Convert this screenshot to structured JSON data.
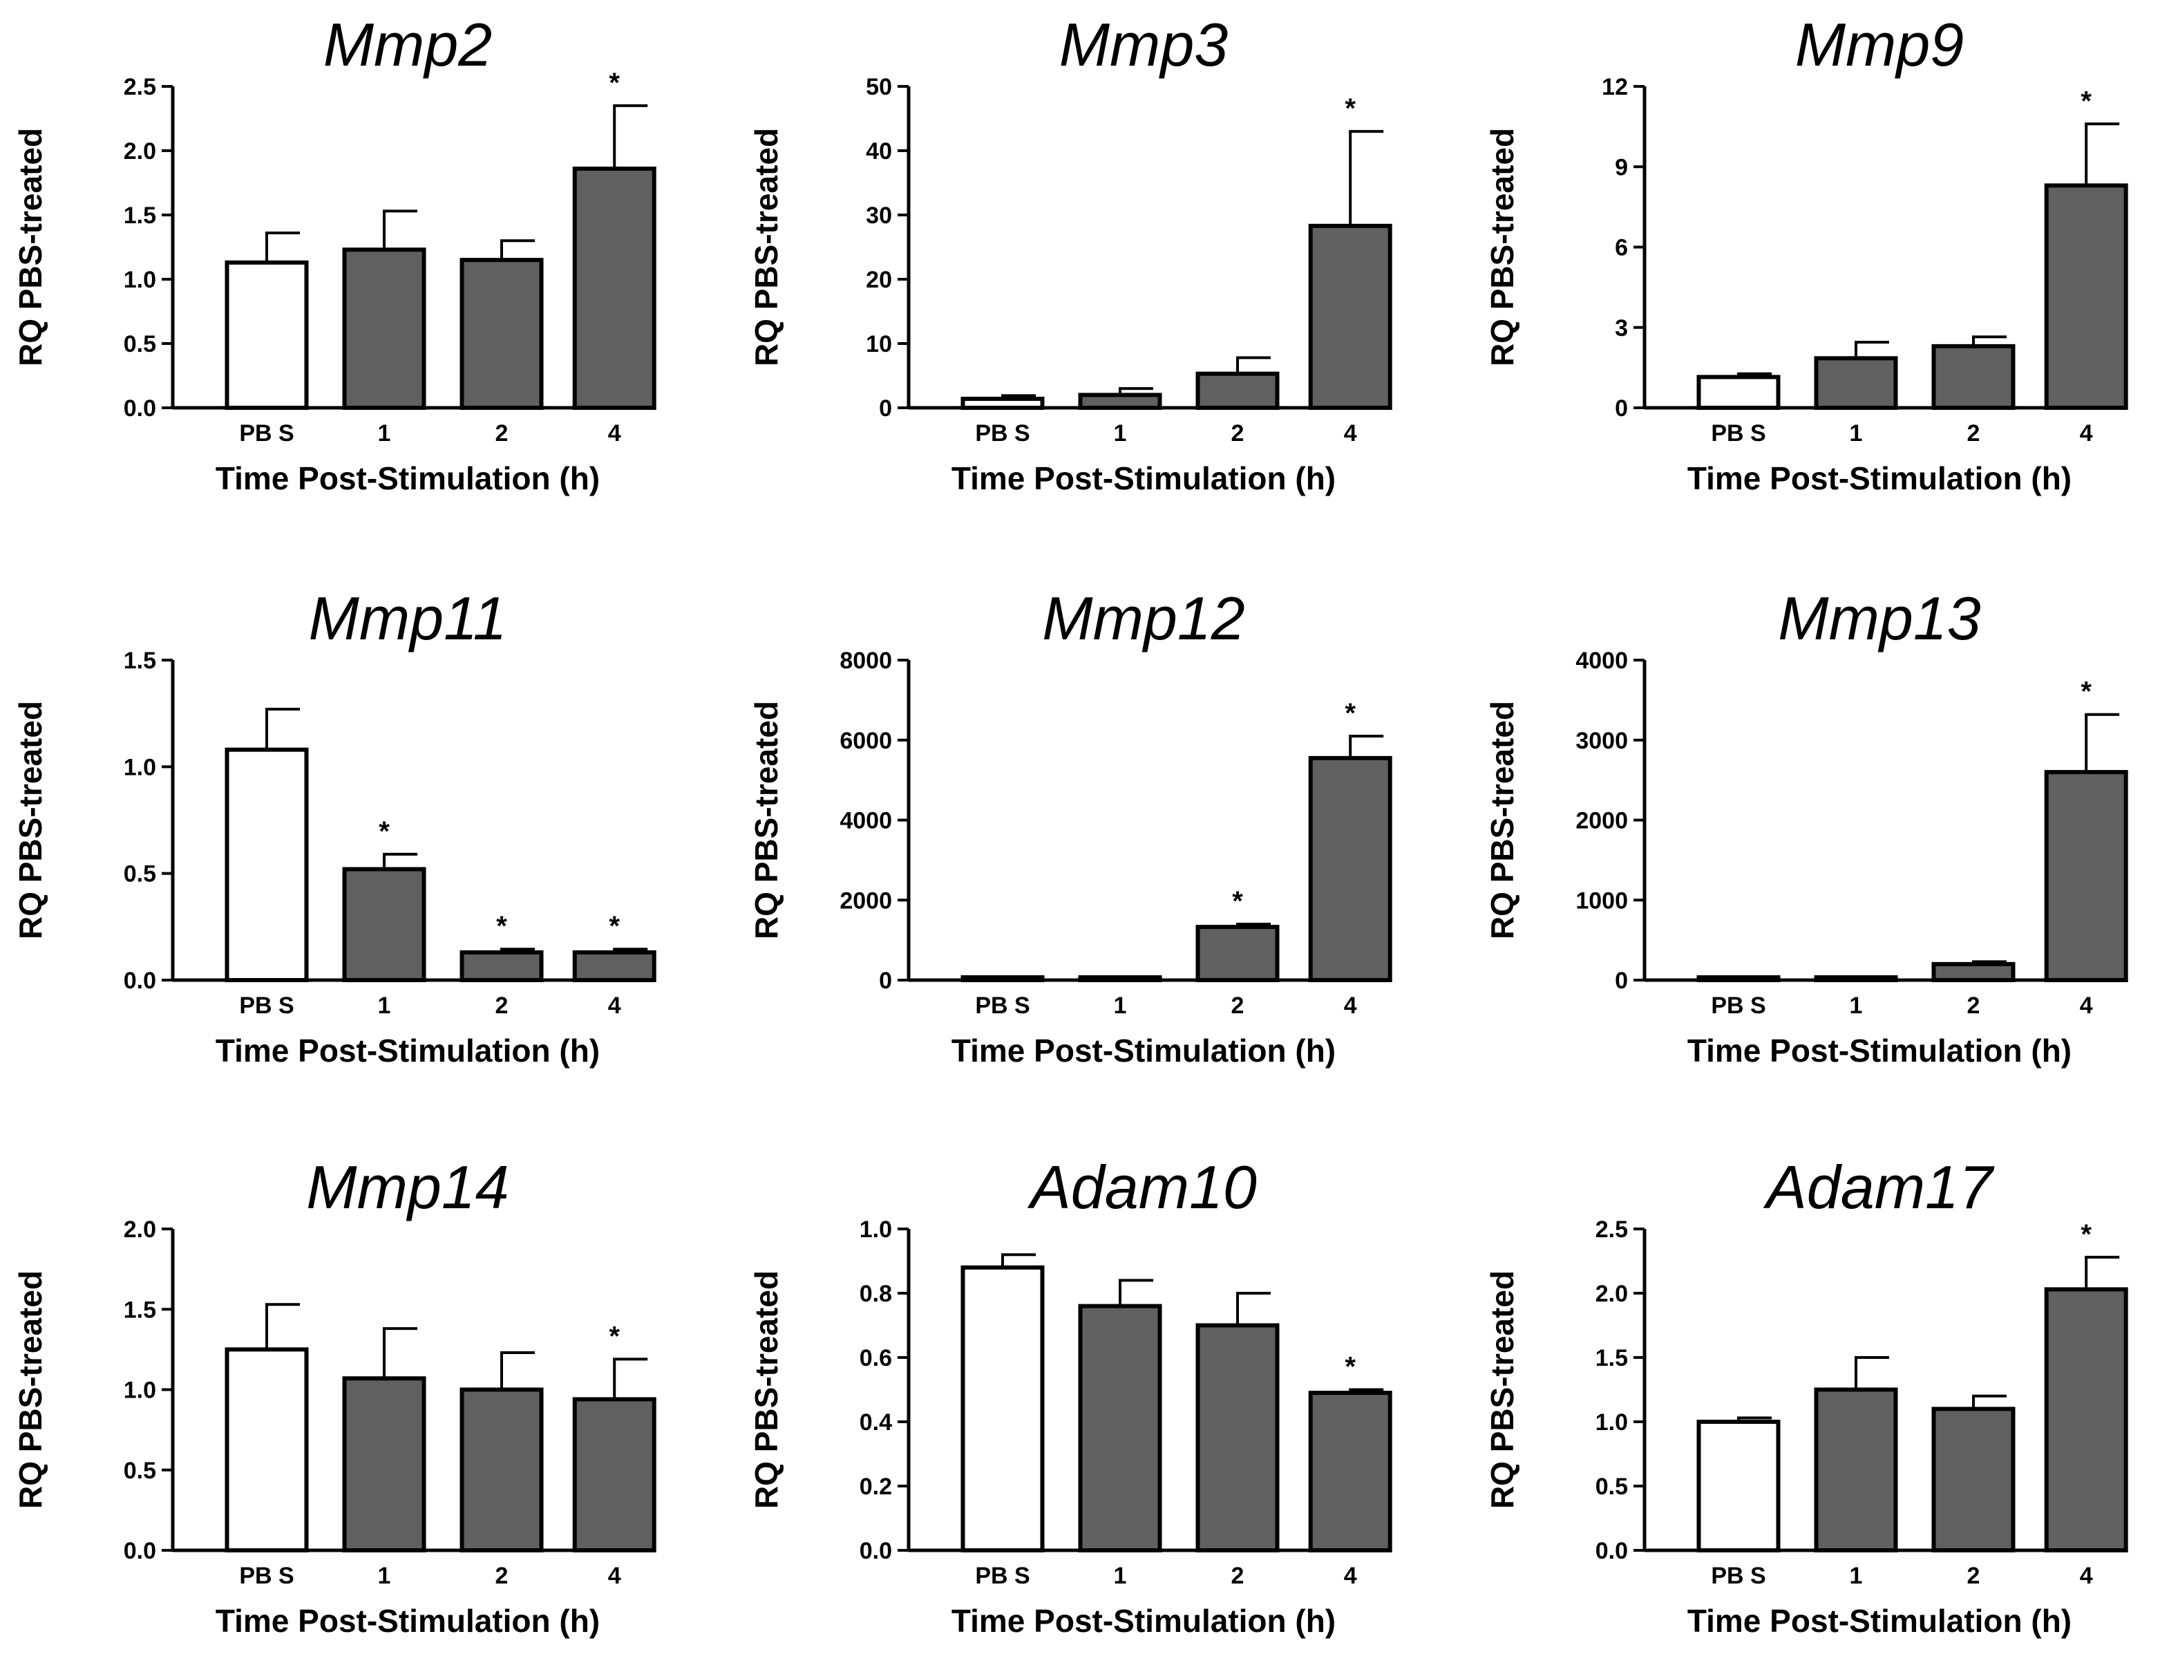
{
  "chart_data": [
    {
      "type": "bar",
      "title": "Mmp2",
      "xlabel": "Time Post-Stimulation (h)",
      "ylabel": "RQ PBS-treated",
      "categories": [
        "PB S",
        "1",
        "2",
        "4"
      ],
      "values": [
        1.13,
        1.23,
        1.15,
        1.86
      ],
      "errors": [
        0.23,
        0.3,
        0.15,
        0.49
      ],
      "significant": [
        false,
        false,
        false,
        true
      ],
      "ylim": [
        0,
        2.5
      ],
      "yticks": [
        "0.0",
        "0.5",
        "1.0",
        "1.5",
        "2.0",
        "2.5"
      ],
      "colors": [
        "#ffffff",
        "#606060",
        "#606060",
        "#606060"
      ]
    },
    {
      "type": "bar",
      "title": "Mmp3",
      "xlabel": "Time Post-Stimulation (h)",
      "ylabel": "RQ PBS-treated",
      "categories": [
        "PB S",
        "1",
        "2",
        "4"
      ],
      "values": [
        1.4,
        2.0,
        5.3,
        28.3
      ],
      "errors": [
        0.5,
        1.0,
        2.5,
        14.7
      ],
      "significant": [
        false,
        false,
        false,
        true
      ],
      "ylim": [
        0,
        50
      ],
      "yticks": [
        "0",
        "10",
        "20",
        "30",
        "40",
        "50"
      ],
      "colors": [
        "#ffffff",
        "#606060",
        "#606060",
        "#606060"
      ]
    },
    {
      "type": "bar",
      "title": "Mmp9",
      "xlabel": "Time Post-Stimulation (h)",
      "ylabel": "RQ PBS-treated",
      "categories": [
        "PB S",
        "1",
        "2",
        "4"
      ],
      "values": [
        1.15,
        1.85,
        2.3,
        8.3
      ],
      "errors": [
        0.12,
        0.6,
        0.35,
        2.3
      ],
      "significant": [
        false,
        false,
        false,
        true
      ],
      "ylim": [
        0,
        12
      ],
      "yticks": [
        "0",
        "3",
        "6",
        "9",
        "12"
      ],
      "colors": [
        "#ffffff",
        "#606060",
        "#606060",
        "#606060"
      ]
    },
    {
      "type": "bar",
      "title": "Mmp11",
      "xlabel": "Time Post-Stimulation (h)",
      "ylabel": "RQ PBS-treated",
      "categories": [
        "PB S",
        "1",
        "2",
        "4"
      ],
      "values": [
        1.08,
        0.52,
        0.13,
        0.13
      ],
      "errors": [
        0.19,
        0.07,
        0.015,
        0.015
      ],
      "significant": [
        false,
        true,
        true,
        true
      ],
      "ylim": [
        0,
        1.5
      ],
      "yticks": [
        "0.0",
        "0.5",
        "1.0",
        "1.5"
      ],
      "colors": [
        "#ffffff",
        "#606060",
        "#606060",
        "#606060"
      ]
    },
    {
      "type": "bar",
      "title": "Mmp12",
      "xlabel": "Time Post-Stimulation (h)",
      "ylabel": "RQ PBS-treated",
      "categories": [
        "PB S",
        "1",
        "2",
        "4"
      ],
      "values": [
        0,
        50,
        1330,
        5550
      ],
      "errors": [
        0,
        20,
        70,
        550
      ],
      "significant": [
        false,
        false,
        true,
        true
      ],
      "ylim": [
        0,
        8000
      ],
      "yticks": [
        "0",
        "2000",
        "4000",
        "6000",
        "8000"
      ],
      "colors": [
        "#ffffff",
        "#606060",
        "#606060",
        "#606060"
      ]
    },
    {
      "type": "bar",
      "title": "Mmp13",
      "xlabel": "Time Post-Stimulation (h)",
      "ylabel": "RQ PBS-treated",
      "categories": [
        "PB S",
        "1",
        "2",
        "4"
      ],
      "values": [
        0,
        5,
        200,
        2600
      ],
      "errors": [
        0,
        2,
        30,
        720
      ],
      "significant": [
        false,
        false,
        false,
        true
      ],
      "ylim": [
        0,
        4000
      ],
      "yticks": [
        "0",
        "1000",
        "2000",
        "3000",
        "4000"
      ],
      "colors": [
        "#ffffff",
        "#606060",
        "#606060",
        "#606060"
      ]
    },
    {
      "type": "bar",
      "title": "Mmp14",
      "xlabel": "Time Post-Stimulation (h)",
      "ylabel": "RQ PBS-treated",
      "categories": [
        "PB S",
        "1",
        "2",
        "4"
      ],
      "values": [
        1.25,
        1.07,
        1.0,
        0.94
      ],
      "errors": [
        0.28,
        0.31,
        0.23,
        0.25
      ],
      "significant": [
        false,
        false,
        false,
        true
      ],
      "ylim": [
        0,
        2.0
      ],
      "yticks": [
        "0.0",
        "0.5",
        "1.0",
        "1.5",
        "2.0"
      ],
      "colors": [
        "#ffffff",
        "#606060",
        "#606060",
        "#606060"
      ]
    },
    {
      "type": "bar",
      "title": "Adam10",
      "xlabel": "Time Post-Stimulation (h)",
      "ylabel": "RQ PBS-treated",
      "categories": [
        "PB S",
        "1",
        "2",
        "4"
      ],
      "values": [
        0.88,
        0.76,
        0.7,
        0.49
      ],
      "errors": [
        0.04,
        0.08,
        0.1,
        0.01
      ],
      "significant": [
        false,
        false,
        false,
        true
      ],
      "ylim": [
        0,
        1.0
      ],
      "yticks": [
        "0.0",
        "0.2",
        "0.4",
        "0.6",
        "0.8",
        "1.0"
      ],
      "colors": [
        "#ffffff",
        "#606060",
        "#606060",
        "#606060"
      ]
    },
    {
      "type": "bar",
      "title": "Adam17",
      "xlabel": "Time Post-Stimulation (h)",
      "ylabel": "RQ PBS-treated",
      "categories": [
        "PB S",
        "1",
        "2",
        "4"
      ],
      "values": [
        1.0,
        1.25,
        1.1,
        2.03
      ],
      "errors": [
        0.03,
        0.25,
        0.1,
        0.25
      ],
      "significant": [
        false,
        false,
        false,
        true
      ],
      "ylim": [
        0,
        2.5
      ],
      "yticks": [
        "0.0",
        "0.5",
        "1.0",
        "1.5",
        "2.0",
        "2.5"
      ],
      "colors": [
        "#ffffff",
        "#606060",
        "#606060",
        "#606060"
      ]
    }
  ],
  "sig_marker": "*"
}
